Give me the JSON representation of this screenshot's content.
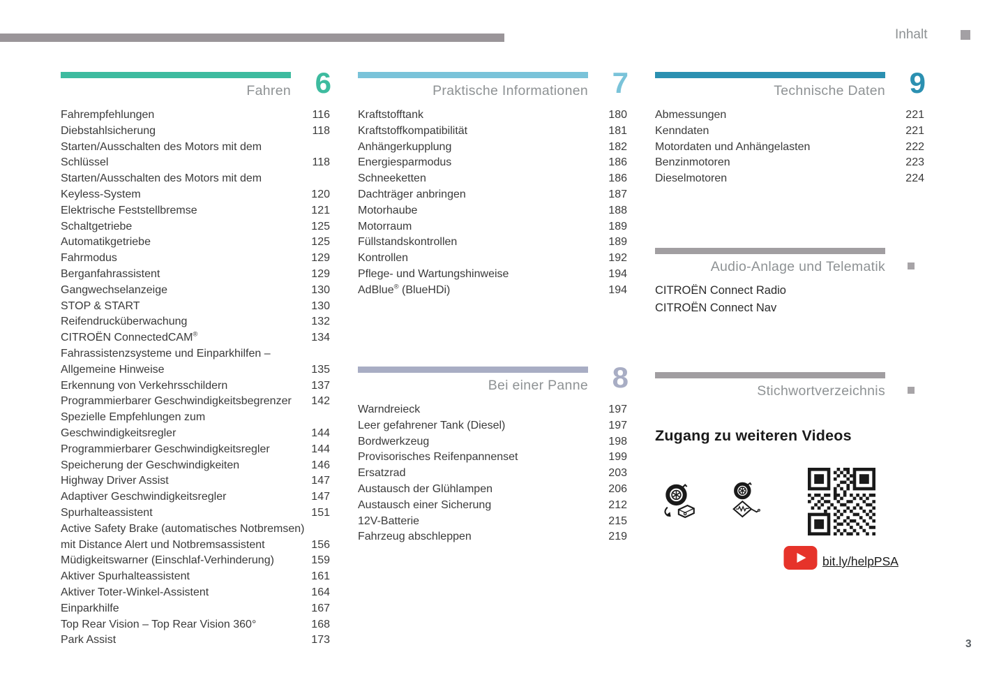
{
  "page": {
    "header_label": "Inhalt",
    "page_number": "3"
  },
  "sections": [
    {
      "id": "fahren",
      "number": "6",
      "title": "Fahren",
      "color": "#3dbb9f",
      "entries": [
        {
          "label": "Fahrempfehlungen",
          "page": "116"
        },
        {
          "label": "Diebstahlsicherung",
          "page": "118"
        },
        {
          "label": "Starten/Ausschalten des Motors mit dem Schlüssel",
          "page": "118"
        },
        {
          "label": "Starten/Ausschalten des Motors mit dem Keyless-System",
          "page": "120"
        },
        {
          "label": "Elektrische Feststellbremse",
          "page": "121"
        },
        {
          "label": "Schaltgetriebe",
          "page": "125"
        },
        {
          "label": "Automatikgetriebe",
          "page": "125"
        },
        {
          "label": "Fahrmodus",
          "page": "129"
        },
        {
          "label": "Berganfahrassistent",
          "page": "129"
        },
        {
          "label": "Gangwechselanzeige",
          "page": "130"
        },
        {
          "label": "STOP & START",
          "page": "130"
        },
        {
          "label": "Reifendrucküberwachung",
          "page": "132"
        },
        {
          "label": "CITROËN ConnectedCAM®",
          "page": "134"
        },
        {
          "label": "Fahrassistenzsysteme und Einparkhilfen – Allgemeine Hinweise",
          "page": "135"
        },
        {
          "label": "Erkennung von Verkehrsschildern",
          "page": "137"
        },
        {
          "label": "Programmierbarer Geschwindigkeitsbegrenzer",
          "page": "142"
        },
        {
          "label": "Spezielle Empfehlungen zum Geschwindigkeitsregler",
          "page": "144"
        },
        {
          "label": "Programmierbarer Geschwindigkeitsregler",
          "page": "144"
        },
        {
          "label": "Speicherung der Geschwindigkeiten",
          "page": "146"
        },
        {
          "label": "Highway Driver Assist",
          "page": "147"
        },
        {
          "label": "Adaptiver Geschwindigkeitsregler",
          "page": "147"
        },
        {
          "label": "Spurhalteassistent",
          "page": "151"
        },
        {
          "label": "Active Safety Brake (automatisches Notbremsen) mit Distance Alert und Notbremsassistent",
          "page": "156"
        },
        {
          "label": "Müdigkeitswarner (Einschlaf-Verhinderung)",
          "page": "159"
        },
        {
          "label": "Aktiver Spurhalteassistent",
          "page": "161"
        },
        {
          "label": "Aktiver Toter-Winkel-Assistent",
          "page": "164"
        },
        {
          "label": "Einparkhilfe",
          "page": "167"
        },
        {
          "label": "Top Rear Vision – Top Rear Vision 360°",
          "page": "168"
        },
        {
          "label": "Park Assist",
          "page": "173"
        }
      ]
    },
    {
      "id": "praktische-informationen",
      "number": "7",
      "title": "Praktische Informationen",
      "color": "#7ac3d9",
      "entries": [
        {
          "label": "Kraftstofftank",
          "page": "180"
        },
        {
          "label": "Kraftstoffkompatibilität",
          "page": "181"
        },
        {
          "label": "Anhängerkupplung",
          "page": "182"
        },
        {
          "label": "Energiesparmodus",
          "page": "186"
        },
        {
          "label": "Schneeketten",
          "page": "186"
        },
        {
          "label": "Dachträger anbringen",
          "page": "187"
        },
        {
          "label": "Motorhaube",
          "page": "188"
        },
        {
          "label": "Motorraum",
          "page": "189"
        },
        {
          "label": "Füllstandskontrollen",
          "page": "189"
        },
        {
          "label": "Kontrollen",
          "page": "192"
        },
        {
          "label": "Pflege- und Wartungshinweise",
          "page": "194"
        },
        {
          "label": "AdBlue® (BlueHDi)",
          "page": "194"
        }
      ]
    },
    {
      "id": "bei-einer-panne",
      "number": "8",
      "title": "Bei einer Panne",
      "color": "#a8adc4",
      "entries": [
        {
          "label": "Warndreieck",
          "page": "197"
        },
        {
          "label": "Leer gefahrener Tank (Diesel)",
          "page": "197"
        },
        {
          "label": "Bordwerkzeug",
          "page": "198"
        },
        {
          "label": "Provisorisches Reifenpannenset",
          "page": "199"
        },
        {
          "label": "Ersatzrad",
          "page": "203"
        },
        {
          "label": "Austausch der Glühlampen",
          "page": "206"
        },
        {
          "label": "Austausch einer Sicherung",
          "page": "212"
        },
        {
          "label": "12V-Batterie",
          "page": "215"
        },
        {
          "label": "Fahrzeug abschleppen",
          "page": "219"
        }
      ]
    },
    {
      "id": "technische-daten",
      "number": "9",
      "title": "Technische Daten",
      "color": "#2b90b1",
      "entries": [
        {
          "label": "Abmessungen",
          "page": "221"
        },
        {
          "label": "Kenndaten",
          "page": "221"
        },
        {
          "label": "Motordaten und Anhängelasten",
          "page": "222"
        },
        {
          "label": "Benzinmotoren",
          "page": "223"
        },
        {
          "label": "Dieselmotoren",
          "page": "224"
        }
      ]
    },
    {
      "id": "audio-anlage-und-telematik",
      "title": "Audio-Anlage und Telematik",
      "color": "#a19ea1",
      "entries": [
        {
          "label": "CITROËN Connect Radio"
        },
        {
          "label": "CITROËN Connect Nav"
        }
      ]
    },
    {
      "id": "stichwortverzeichnis",
      "title": "Stichwortverzeichnis",
      "color": "#a19ea1",
      "entries": []
    }
  ],
  "videos": {
    "heading": "Zugang zu weiteren Videos",
    "link": "bit.ly/helpPSA",
    "youtube_color": "#e6332a",
    "icons": [
      "tire-repair-kit-icon",
      "tire-jack-icon",
      "qr-code-icon",
      "youtube-icon"
    ]
  }
}
